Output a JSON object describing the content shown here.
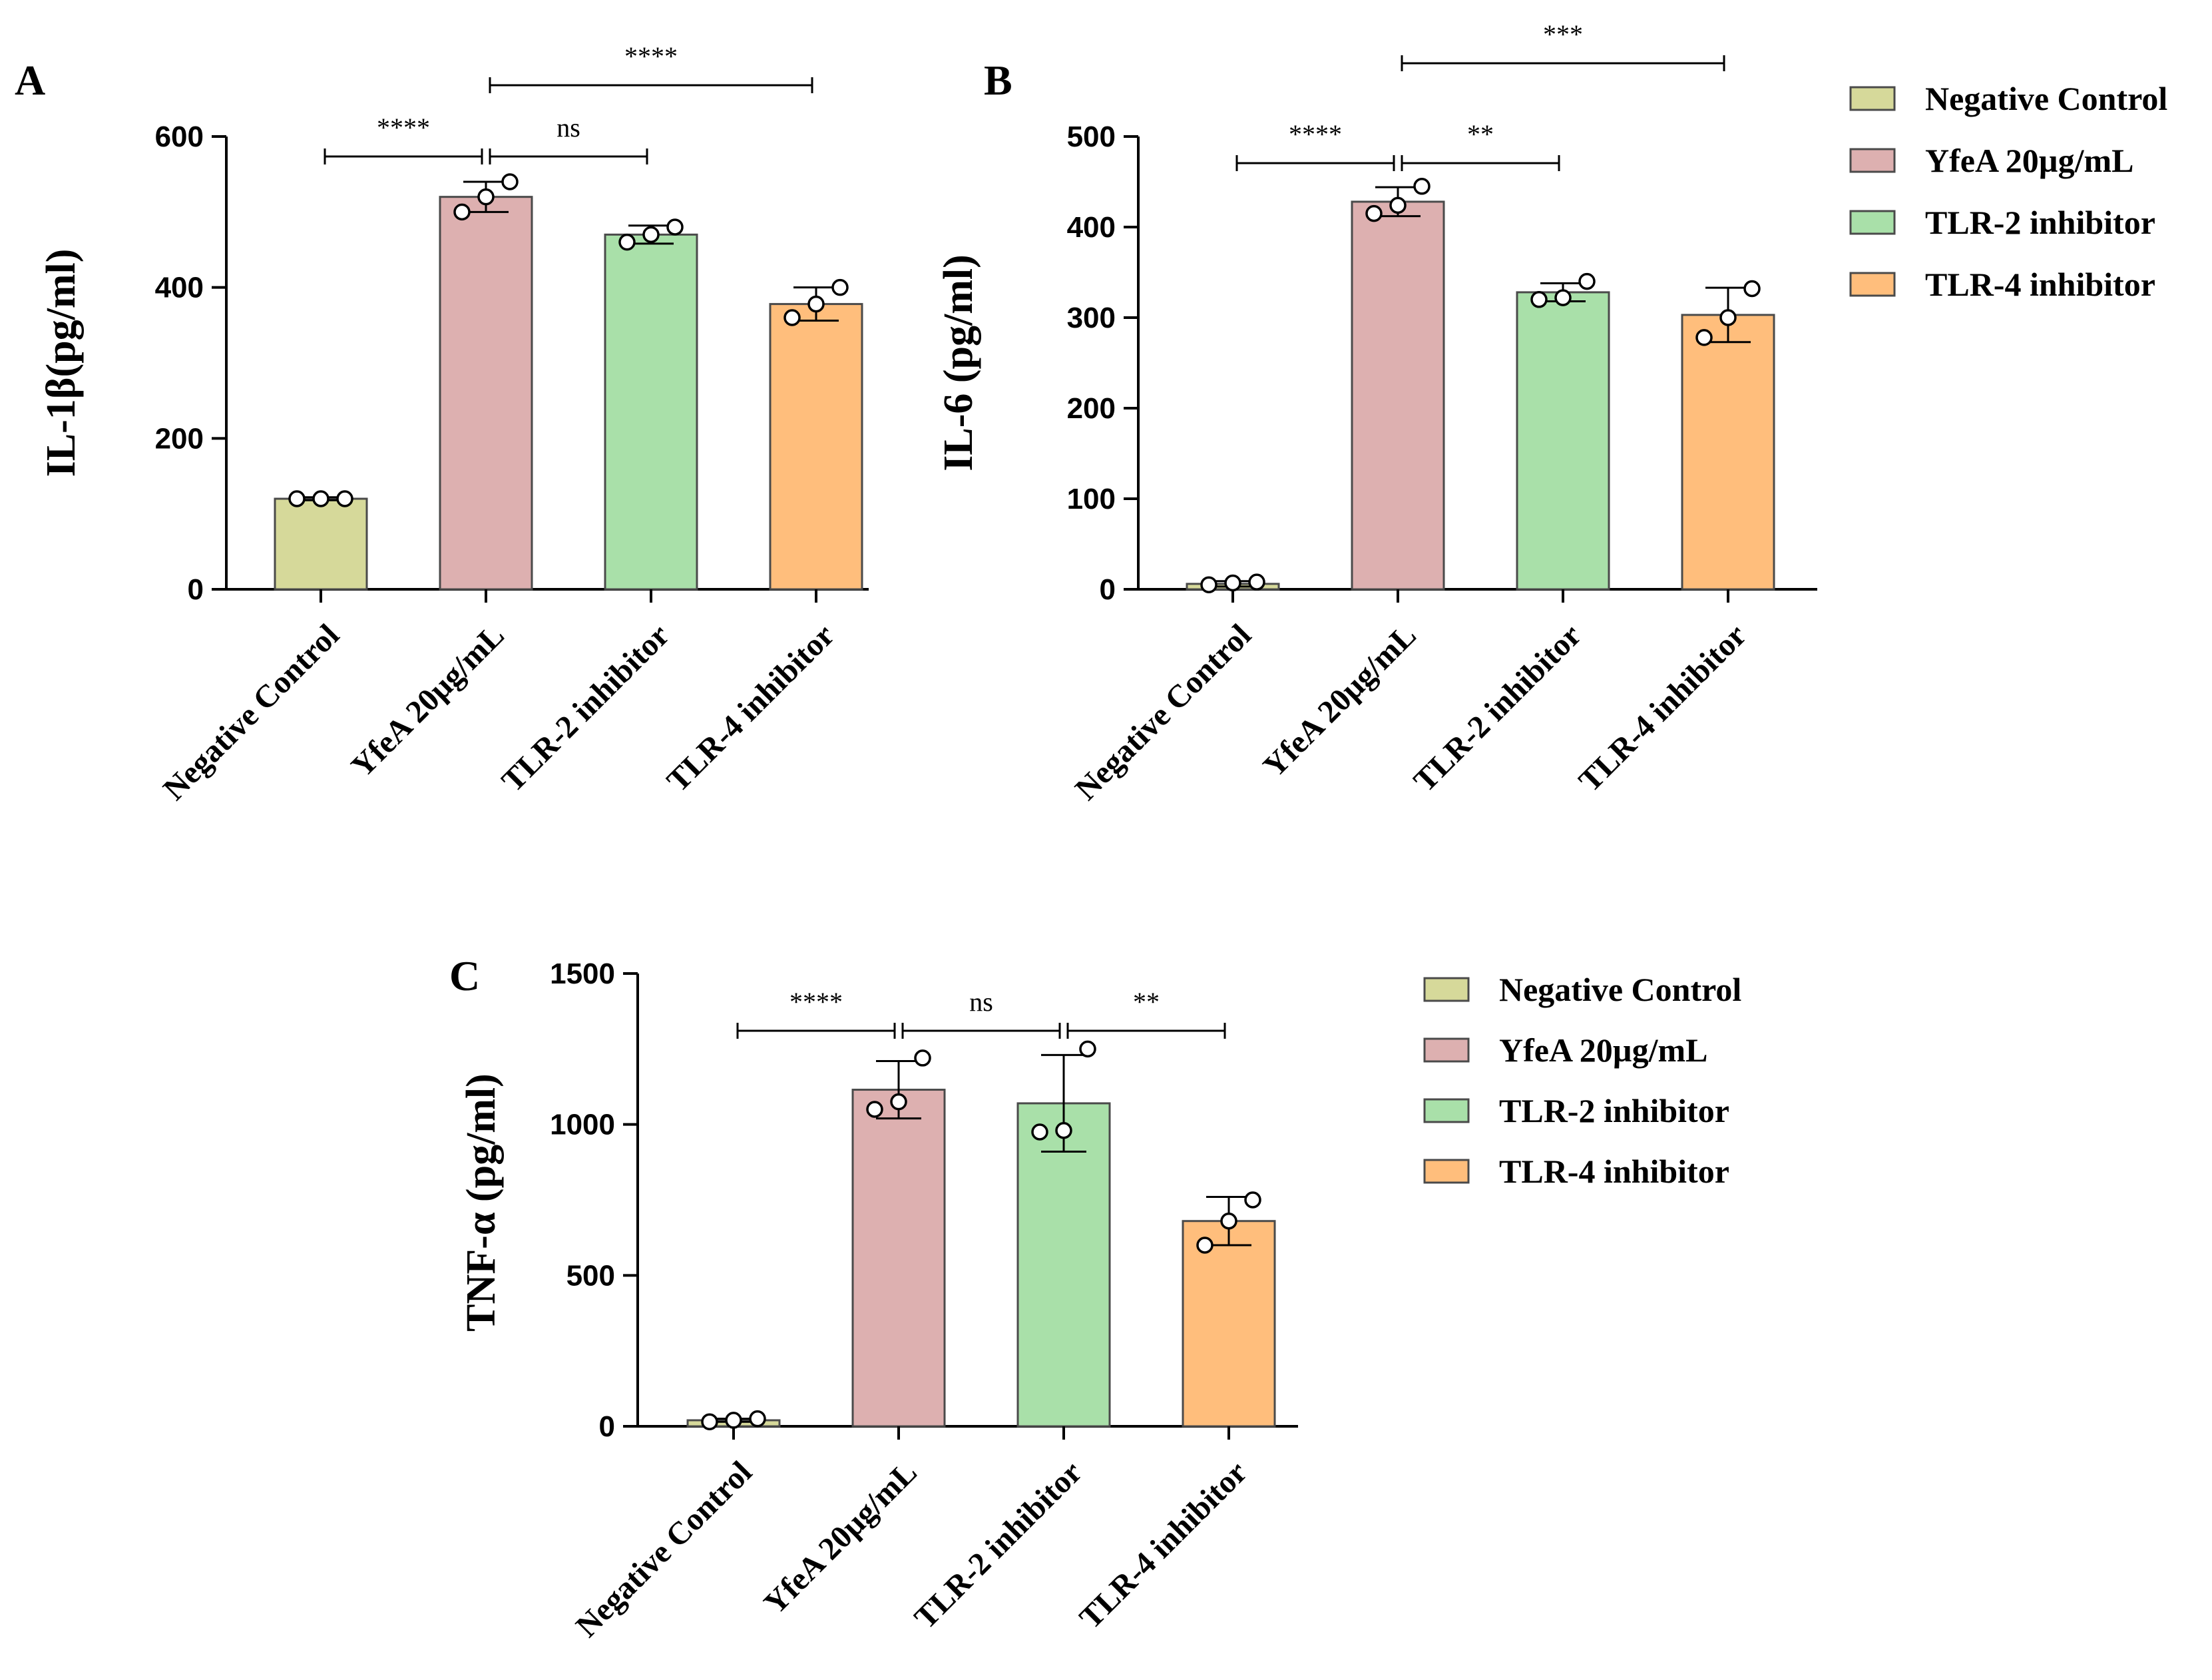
{
  "colors": {
    "Negative Control": "#d6d99a",
    "YfeA 20µg/mL": "#ddb0b0",
    "TLR-2 inhibitor": "#a9e0a9",
    "TLR-4 inhibitor": "#ffbe7c",
    "axis": "#000000",
    "bar_edge": "#4a4a4a"
  },
  "chart_data": [
    {
      "panel": "A",
      "type": "bar",
      "ylabel": "IL-1β(pg/ml)",
      "ylim": [
        0,
        600
      ],
      "yticks": [
        0,
        200,
        400,
        600
      ],
      "categories": [
        "Negative Control",
        "YfeA 20µg/mL",
        "TLR-2 inhibitor",
        "TLR-4 inhibitor"
      ],
      "values": [
        120,
        520,
        470,
        378
      ],
      "errors": [
        2,
        20,
        12,
        22
      ],
      "points": [
        [
          120,
          120,
          120
        ],
        [
          500,
          520,
          540
        ],
        [
          460,
          470,
          480
        ],
        [
          360,
          378,
          400
        ]
      ],
      "significance": [
        {
          "from": 0,
          "to": 1,
          "label": "****",
          "level": 0
        },
        {
          "from": 1,
          "to": 2,
          "label": "ns",
          "level": 0
        },
        {
          "from": 1,
          "to": 3,
          "label": "****",
          "level": 1
        }
      ]
    },
    {
      "panel": "B",
      "type": "bar",
      "ylabel": "IL-6 (pg/ml)",
      "ylim": [
        0,
        500
      ],
      "yticks": [
        0,
        100,
        200,
        300,
        400,
        500
      ],
      "categories": [
        "Negative Control",
        "YfeA 20µg/mL",
        "TLR-2 inhibitor",
        "TLR-4 inhibitor"
      ],
      "values": [
        6,
        428,
        328,
        303
      ],
      "errors": [
        3,
        16,
        10,
        30
      ],
      "points": [
        [
          5,
          7,
          8
        ],
        [
          415,
          424,
          445
        ],
        [
          320,
          322,
          340
        ],
        [
          278,
          300,
          332
        ]
      ],
      "significance": [
        {
          "from": 0,
          "to": 1,
          "label": "****",
          "level": 0
        },
        {
          "from": 1,
          "to": 2,
          "label": "**",
          "level": 0
        },
        {
          "from": 1,
          "to": 3,
          "label": "***",
          "level": 1
        }
      ]
    },
    {
      "panel": "C",
      "type": "bar",
      "ylabel": "TNF-α (pg/ml)",
      "ylim": [
        0,
        1500
      ],
      "yticks": [
        0,
        500,
        1000,
        1500
      ],
      "categories": [
        "Negative Control",
        "YfeA 20µg/mL",
        "TLR-2 inhibitor",
        "TLR-4 inhibitor"
      ],
      "values": [
        20,
        1115,
        1070,
        680
      ],
      "errors": [
        5,
        95,
        160,
        80
      ],
      "points": [
        [
          15,
          20,
          25
        ],
        [
          1050,
          1075,
          1220
        ],
        [
          975,
          980,
          1250
        ],
        [
          600,
          680,
          750
        ]
      ],
      "significance": [
        {
          "from": 0,
          "to": 1,
          "label": "****",
          "level": 0
        },
        {
          "from": 1,
          "to": 2,
          "label": "ns",
          "level": 0
        },
        {
          "from": 2,
          "to": 3,
          "label": "**",
          "level": 0
        }
      ]
    }
  ],
  "legends": [
    {
      "panel": "B",
      "entries": [
        "Negative Control",
        "YfeA 20µg/mL",
        "TLR-2 inhibitor",
        "TLR-4 inhibitor"
      ]
    },
    {
      "panel": "C",
      "entries": [
        "Negative Control",
        "YfeA 20µg/mL",
        "TLR-2 inhibitor",
        "TLR-4 inhibitor"
      ]
    }
  ]
}
